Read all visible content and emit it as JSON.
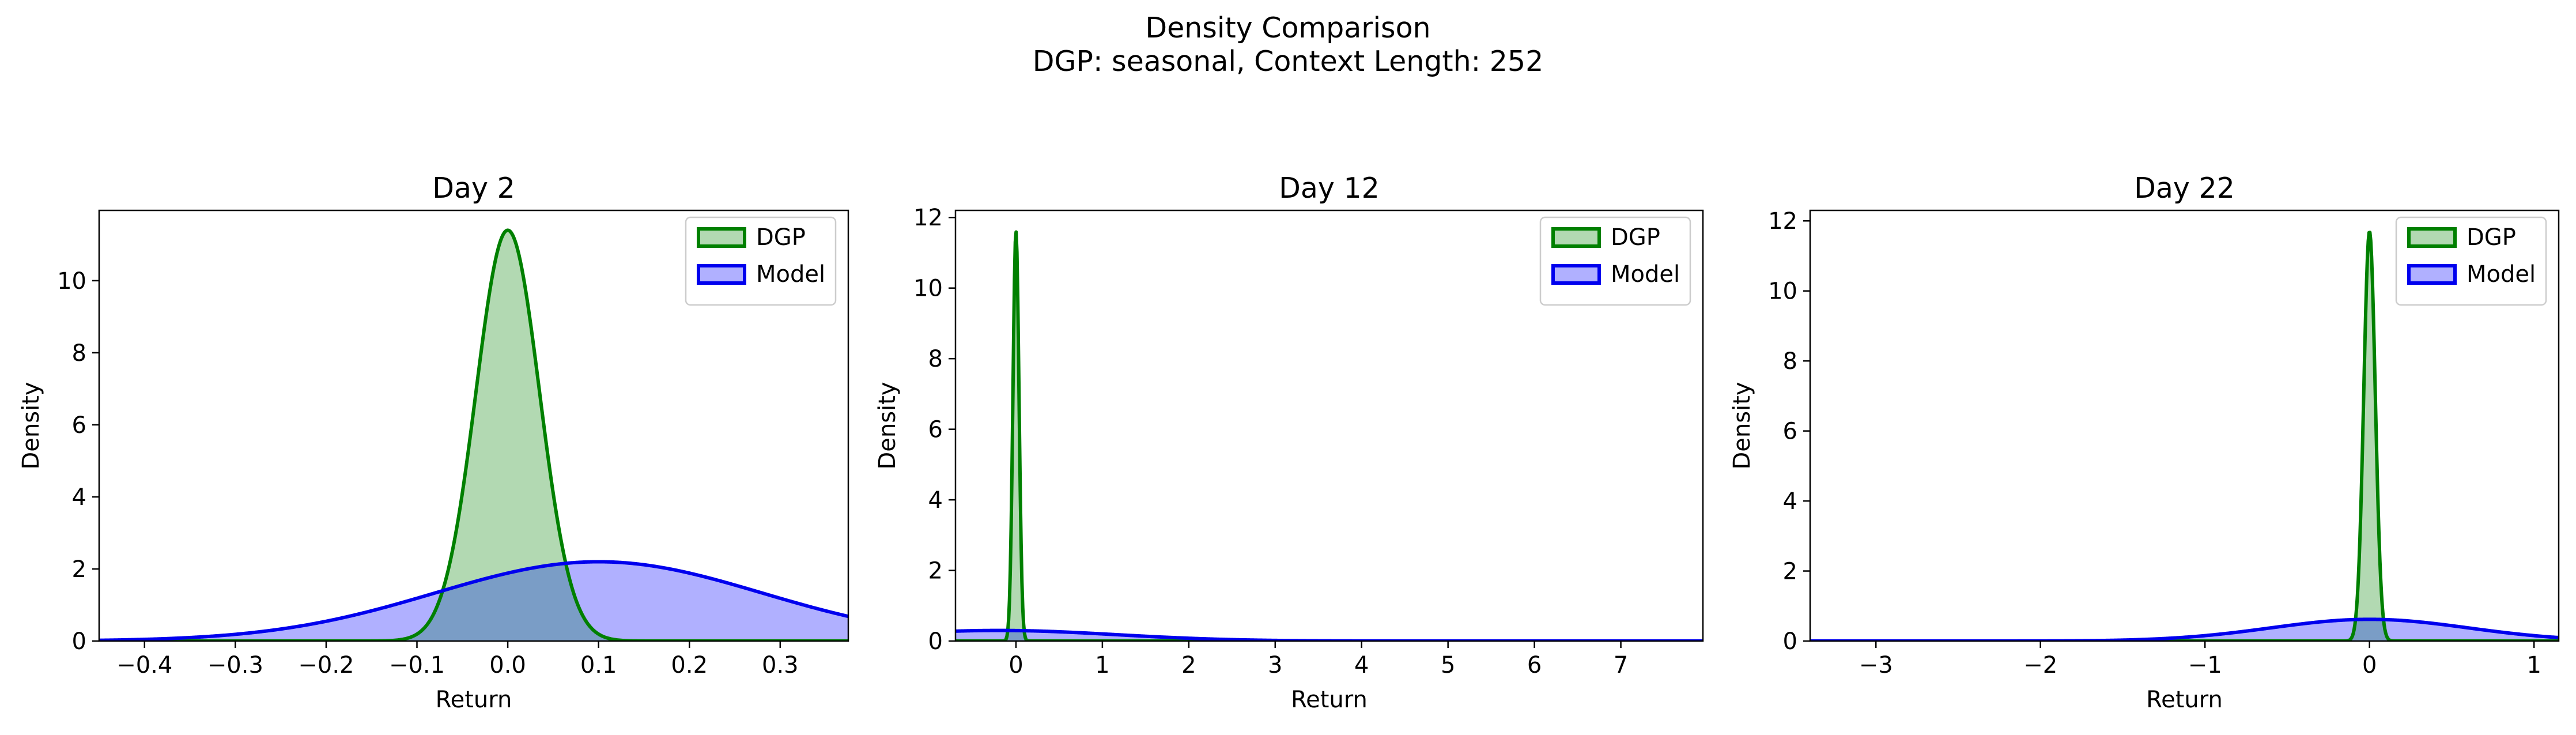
{
  "figure": {
    "title_line1": "Density Comparison",
    "title_line2": "DGP: seasonal, Context Length: 252"
  },
  "colors": {
    "dgp_line": "#008000",
    "dgp_fill": "#b2d9b2",
    "model_line": "#0000ee",
    "model_fill": "#b0b0ff",
    "overlap_fill": "#7a9dc6"
  },
  "chart_data": [
    {
      "type": "area",
      "title": "Day 2",
      "xlabel": "Return",
      "ylabel": "Density",
      "xlim": [
        -0.45,
        0.375
      ],
      "ylim": [
        0,
        11.95
      ],
      "xticks": [
        -0.4,
        -0.3,
        -0.2,
        -0.1,
        0.0,
        0.1,
        0.2,
        0.3
      ],
      "xtick_labels": [
        "−0.4",
        "−0.3",
        "−0.2",
        "−0.1",
        "0.0",
        "0.1",
        "0.2",
        "0.3"
      ],
      "yticks": [
        0,
        2,
        4,
        6,
        8,
        10
      ],
      "ytick_labels": [
        "0",
        "2",
        "4",
        "6",
        "8",
        "10"
      ],
      "legend": "top-right",
      "series": [
        {
          "name": "DGP",
          "mean": 0.0,
          "sd": 0.035,
          "peak": 11.4
        },
        {
          "name": "Model",
          "mean": 0.1,
          "sd": 0.18,
          "peak": 2.2
        }
      ]
    },
    {
      "type": "area",
      "title": "Day 12",
      "xlabel": "Return",
      "ylabel": "Density",
      "xlim": [
        -0.7,
        7.95
      ],
      "ylim": [
        0,
        12.2
      ],
      "xticks": [
        0,
        1,
        2,
        3,
        4,
        5,
        6,
        7
      ],
      "xtick_labels": [
        "0",
        "1",
        "2",
        "3",
        "4",
        "5",
        "6",
        "7"
      ],
      "yticks": [
        0,
        2,
        4,
        6,
        8,
        10,
        12
      ],
      "ytick_labels": [
        "0",
        "2",
        "4",
        "6",
        "8",
        "10",
        "12"
      ],
      "legend": "top-right",
      "series": [
        {
          "name": "DGP",
          "mean": 0.0,
          "sd": 0.035,
          "peak": 11.6
        },
        {
          "name": "Model",
          "mean": -0.2,
          "sd": 1.35,
          "peak": 0.3
        }
      ]
    },
    {
      "type": "area",
      "title": "Day 22",
      "xlabel": "Return",
      "ylabel": "Density",
      "xlim": [
        -3.4,
        1.15
      ],
      "ylim": [
        0,
        12.3
      ],
      "xticks": [
        -3,
        -2,
        -1,
        0,
        1
      ],
      "xtick_labels": [
        "−3",
        "−2",
        "−1",
        "0",
        "1"
      ],
      "yticks": [
        0,
        2,
        4,
        6,
        8,
        10,
        12
      ],
      "ytick_labels": [
        "0",
        "2",
        "4",
        "6",
        "8",
        "10",
        "12"
      ],
      "legend": "top-right",
      "series": [
        {
          "name": "DGP",
          "mean": 0.0,
          "sd": 0.035,
          "peak": 11.7
        },
        {
          "name": "Model",
          "mean": 0.0,
          "sd": 0.6,
          "peak": 0.62
        }
      ]
    }
  ]
}
